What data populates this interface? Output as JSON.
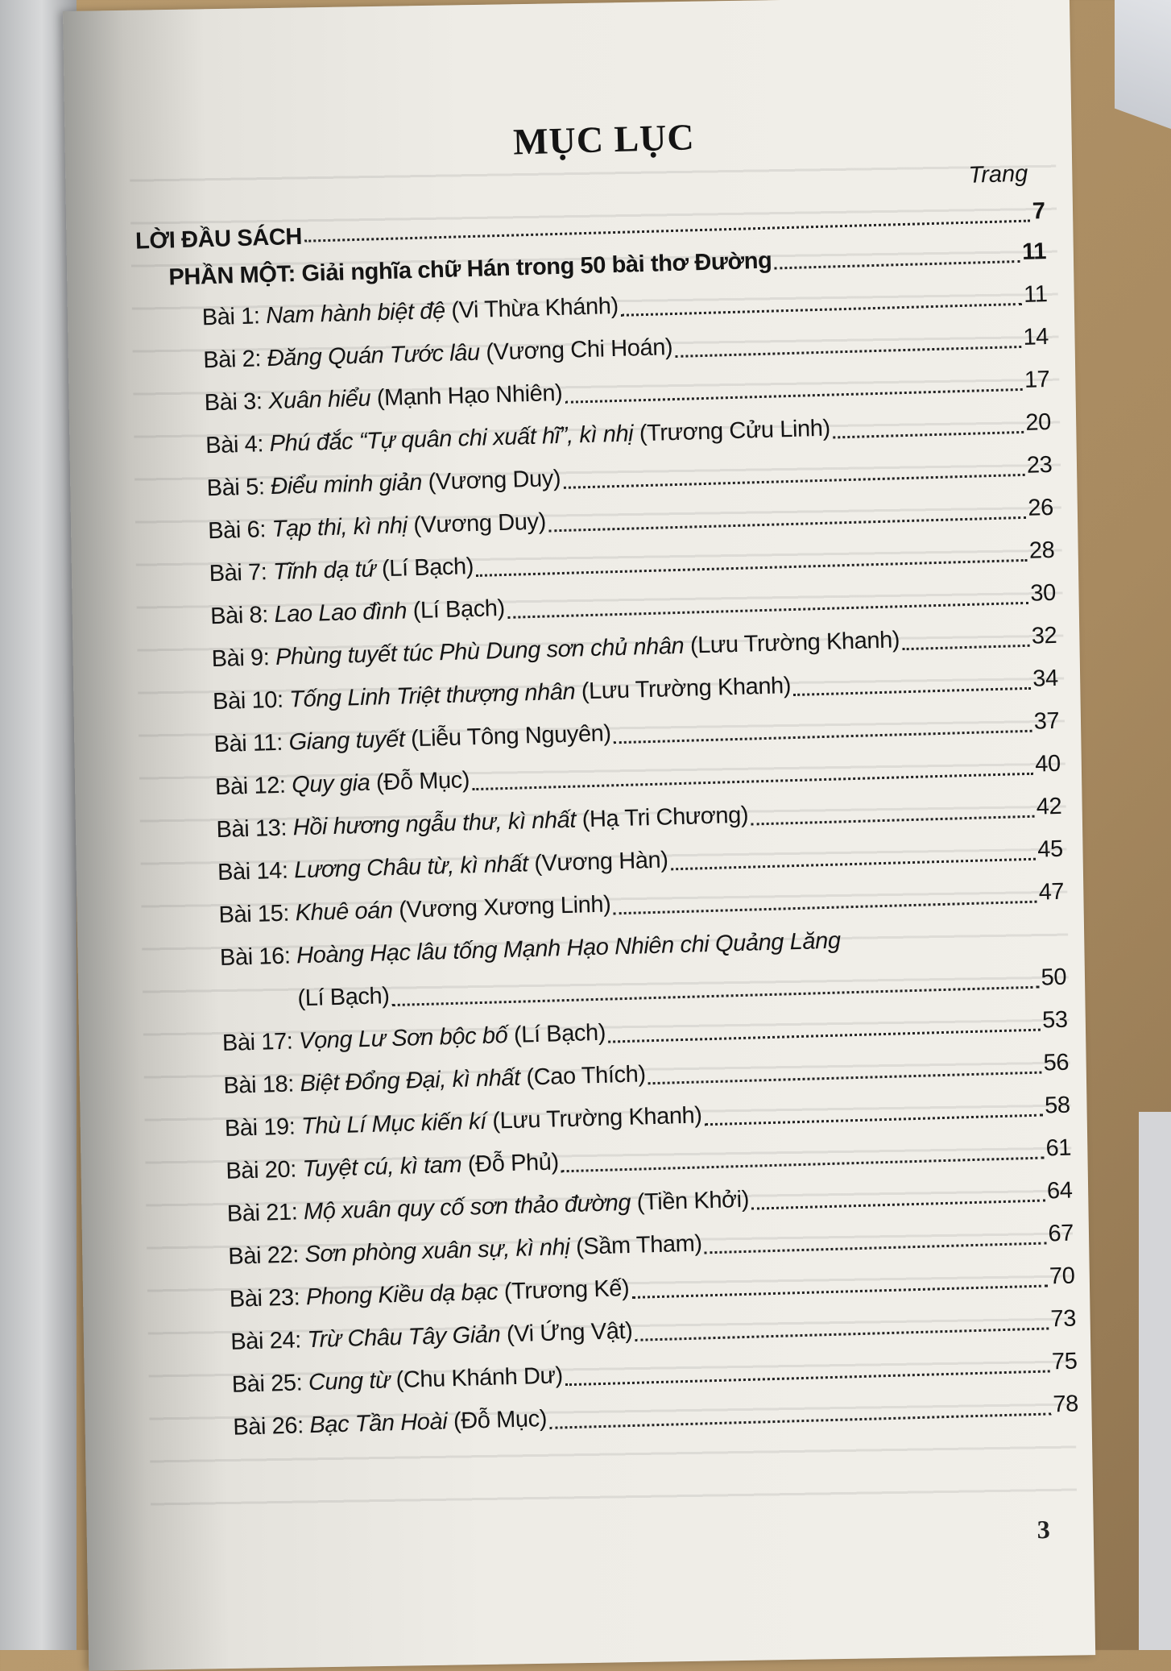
{
  "toc": {
    "title": "MỤC LỤC",
    "page_column_label": "Trang",
    "front_matter": {
      "label": "LỜI ĐẦU SÁCH",
      "page": "7"
    },
    "part": {
      "label": "PHẦN MỘT: Giải nghĩa chữ Hán trong 50 bài thơ Đường",
      "page": "11"
    },
    "entries": [
      {
        "num": "Bài 1:",
        "title": "Nam hành biệt đệ",
        "author": "(Vi Thừa Khánh)",
        "page": "11"
      },
      {
        "num": "Bài 2:",
        "title": "Đăng Quán Tước lâu",
        "author": "(Vương Chi Hoán)",
        "page": "14"
      },
      {
        "num": "Bài 3:",
        "title": "Xuân hiểu",
        "author": "(Mạnh Hạo Nhiên)",
        "page": "17"
      },
      {
        "num": "Bài 4:",
        "title": "Phú đắc “Tự quân chi xuất hĩ”, kì nhị",
        "author": "(Trương Cửu Linh)",
        "page": "20"
      },
      {
        "num": "Bài 5:",
        "title": "Điểu minh giản",
        "author": "(Vương Duy)",
        "page": "23"
      },
      {
        "num": "Bài 6:",
        "title": "Tạp thi, kì nhị",
        "author": "(Vương Duy)",
        "page": "26"
      },
      {
        "num": "Bài 7:",
        "title": "Tĩnh dạ tứ",
        "author": "(Lí Bạch)",
        "page": "28"
      },
      {
        "num": "Bài 8:",
        "title": "Lao Lao đình",
        "author": "(Lí Bạch)",
        "page": "30"
      },
      {
        "num": "Bài 9:",
        "title": "Phùng tuyết túc Phù Dung sơn chủ nhân",
        "author": "(Lưu Trường Khanh)",
        "page": "32"
      },
      {
        "num": "Bài 10:",
        "title": "Tống Linh Triệt thượng nhân",
        "author": "(Lưu Trường Khanh)",
        "page": "34"
      },
      {
        "num": "Bài 11:",
        "title": "Giang tuyết",
        "author": "(Liễu Tông Nguyên)",
        "page": "37"
      },
      {
        "num": "Bài 12:",
        "title": "Quy gia",
        "author": "(Đỗ Mục)",
        "page": "40"
      },
      {
        "num": "Bài 13:",
        "title": "Hồi hương ngẫu thư, kì nhất",
        "author": "(Hạ Tri Chương)",
        "page": "42"
      },
      {
        "num": "Bài 14:",
        "title": "Lương Châu từ, kì nhất",
        "author": "(Vương Hàn)",
        "page": "45"
      },
      {
        "num": "Bài 15:",
        "title": "Khuê oán",
        "author": "(Vương Xương Linh)",
        "page": "47"
      },
      {
        "num": "Bài 16:",
        "title": "Hoàng Hạc lâu tống Mạnh Hạo Nhiên chi Quảng Lăng",
        "author": "(Lí Bạch)",
        "page": "50"
      },
      {
        "num": "Bài 17:",
        "title": "Vọng Lư Sơn bộc bố",
        "author": "(Lí Bạch)",
        "page": "53"
      },
      {
        "num": "Bài 18:",
        "title": "Biệt Đổng Đại, kì nhất",
        "author": "(Cao Thích)",
        "page": "56"
      },
      {
        "num": "Bài 19:",
        "title": "Thù Lí Mục kiến kí",
        "author": "(Lưu Trường Khanh)",
        "page": "58"
      },
      {
        "num": "Bài 20:",
        "title": "Tuyệt cú, kì tam",
        "author": "(Đỗ Phủ)",
        "page": "61"
      },
      {
        "num": "Bài 21:",
        "title": "Mộ xuân quy cố sơn thảo đường",
        "author": "(Tiền Khởi)",
        "page": "64"
      },
      {
        "num": "Bài 22:",
        "title": "Sơn phòng xuân sự, kì nhị",
        "author": "(Sầm Tham)",
        "page": "67"
      },
      {
        "num": "Bài 23:",
        "title": "Phong Kiều dạ bạc",
        "author": "(Trương Kế)",
        "page": "70"
      },
      {
        "num": "Bài 24:",
        "title": "Trừ Châu Tây Giản",
        "author": "(Vi Ứng Vật)",
        "page": "73"
      },
      {
        "num": "Bài 25:",
        "title": "Cung từ",
        "author": "(Chu Khánh Dư)",
        "page": "75"
      },
      {
        "num": "Bài 26:",
        "title": "Bạc Tần Hoài",
        "author": "(Đỗ Mục)",
        "page": "78"
      }
    ]
  },
  "page_number": "3"
}
